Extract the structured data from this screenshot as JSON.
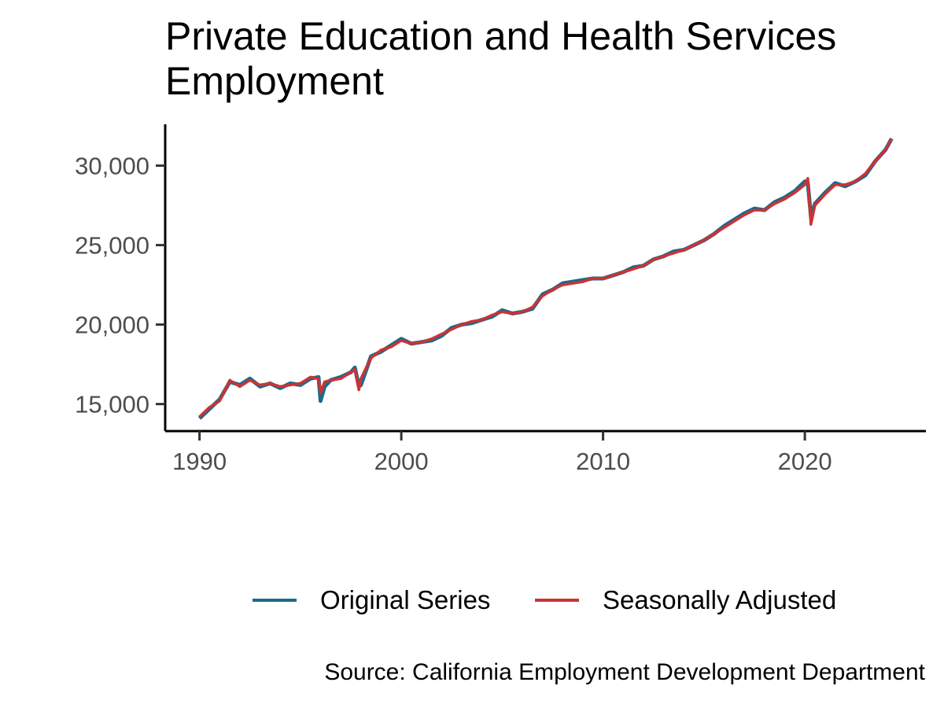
{
  "chart_data": {
    "type": "line",
    "title": "Private Education and Health Services Employment",
    "xlabel": "",
    "ylabel": "",
    "xlim": [
      1988.3,
      2026.0
    ],
    "ylim": [
      13300,
      32600
    ],
    "x_ticks": [
      1990,
      2000,
      2010,
      2020
    ],
    "x_tick_labels": [
      "1990",
      "2000",
      "2010",
      "2020"
    ],
    "y_ticks": [
      15000,
      20000,
      25000,
      30000
    ],
    "y_tick_labels": [
      "15,000",
      "20,000",
      "25,000",
      "30,000"
    ],
    "grid": false,
    "legend_position": "bottom",
    "caption": "Source: California Employment Development Department",
    "colors": {
      "original": "#1b6a8c",
      "adjusted": "#cc3333"
    },
    "x": [
      1990.0,
      1990.5,
      1991.0,
      1991.5,
      1992.0,
      1992.5,
      1993.0,
      1993.5,
      1994.0,
      1994.5,
      1995.0,
      1995.5,
      1995.9,
      1996.0,
      1996.2,
      1996.5,
      1997.0,
      1997.5,
      1997.7,
      1997.9,
      1998.0,
      1998.5,
      1999.0,
      1999.5,
      2000.0,
      2000.5,
      2001.0,
      2001.5,
      2002.0,
      2002.5,
      2003.0,
      2003.5,
      2004.0,
      2004.5,
      2005.0,
      2005.5,
      2006.0,
      2006.5,
      2007.0,
      2007.5,
      2008.0,
      2008.5,
      2009.0,
      2009.5,
      2010.0,
      2010.5,
      2011.0,
      2011.5,
      2012.0,
      2012.5,
      2013.0,
      2013.5,
      2014.0,
      2014.5,
      2015.0,
      2015.5,
      2016.0,
      2016.5,
      2017.0,
      2017.5,
      2018.0,
      2018.5,
      2019.0,
      2019.5,
      2020.0,
      2020.15,
      2020.3,
      2020.5,
      2021.0,
      2021.5,
      2022.0,
      2022.5,
      2023.0,
      2023.5,
      2024.0,
      2024.3
    ],
    "series": [
      {
        "name": "Original Series",
        "values": [
          14100,
          14700,
          15300,
          16400,
          16200,
          16600,
          16100,
          16300,
          16000,
          16300,
          16200,
          16600,
          16700,
          15200,
          16100,
          16500,
          16700,
          17000,
          17300,
          16100,
          16200,
          18000,
          18300,
          18700,
          19100,
          18800,
          18900,
          19000,
          19300,
          19800,
          20000,
          20100,
          20300,
          20500,
          20900,
          20700,
          20800,
          21000,
          21900,
          22200,
          22600,
          22700,
          22800,
          22900,
          22900,
          23100,
          23300,
          23600,
          23700,
          24100,
          24300,
          24600,
          24700,
          25000,
          25300,
          25700,
          26200,
          26600,
          27000,
          27300,
          27200,
          27700,
          28000,
          28400,
          29000,
          28900,
          26800,
          27600,
          28300,
          28900,
          28700,
          29000,
          29400,
          30300,
          31000,
          31700
        ]
      },
      {
        "name": "Seasonally Adjusted",
        "values": [
          14200,
          14800,
          15200,
          16500,
          16100,
          16500,
          16200,
          16300,
          16100,
          16200,
          16300,
          16700,
          16600,
          15700,
          16400,
          16500,
          16600,
          17000,
          17200,
          15900,
          16600,
          17900,
          18400,
          18600,
          19000,
          18800,
          18900,
          19100,
          19400,
          19700,
          20000,
          20200,
          20300,
          20600,
          20800,
          20700,
          20800,
          21100,
          21800,
          22200,
          22500,
          22600,
          22700,
          22900,
          22900,
          23100,
          23300,
          23500,
          23700,
          24100,
          24300,
          24500,
          24700,
          25000,
          25300,
          25700,
          26100,
          26500,
          26900,
          27200,
          27200,
          27600,
          27900,
          28300,
          28800,
          29200,
          26300,
          27500,
          28200,
          28800,
          28800,
          29000,
          29500,
          30300,
          31000,
          31700
        ]
      }
    ]
  }
}
